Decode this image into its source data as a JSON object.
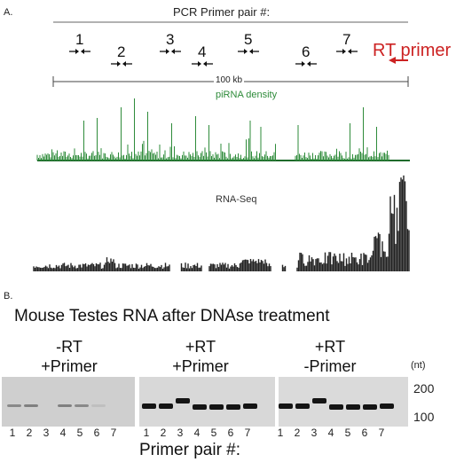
{
  "panel_a": {
    "label": "A.",
    "pcr_title": "PCR Primer pair #:",
    "primers": [
      {
        "label": "1"
      },
      {
        "label": "2"
      },
      {
        "label": "3"
      },
      {
        "label": "4"
      },
      {
        "label": "5"
      },
      {
        "label": "6"
      },
      {
        "label": "7"
      }
    ],
    "rt_primer": "RT primer",
    "rt_color": "#cc2222",
    "scale_label": "100 kb",
    "pirna_label": "piRNA density",
    "pirna_color": "#2e8b3a",
    "rnaseq_label": "RNA-Seq",
    "rnaseq_color": "#222222"
  },
  "panel_b": {
    "label": "B.",
    "title": "Mouse Testes RNA after DNAse treatment",
    "groups": [
      {
        "line1": "-RT",
        "line2": "+Primer",
        "lanes": [
          "1",
          "2",
          "3",
          "4",
          "5",
          "6",
          "7"
        ],
        "band_intensity": [
          0.35,
          0.4,
          0.0,
          0.4,
          0.35,
          0.05,
          0.0
        ]
      },
      {
        "line1": "+RT",
        "line2": "+Primer",
        "lanes": [
          "1",
          "2",
          "3",
          "4",
          "5",
          "6",
          "7"
        ],
        "band_intensity": [
          1,
          1,
          1,
          1,
          1,
          1,
          1
        ]
      },
      {
        "line1": "+RT",
        "line2": "-Primer",
        "lanes": [
          "1",
          "2",
          "3",
          "4",
          "5",
          "6",
          "7"
        ],
        "band_intensity": [
          1,
          1,
          1,
          1,
          1,
          1,
          1
        ]
      }
    ],
    "unit_label": "(nt)",
    "markers": [
      "200",
      "100"
    ],
    "x_label": "Primer pair #:"
  }
}
